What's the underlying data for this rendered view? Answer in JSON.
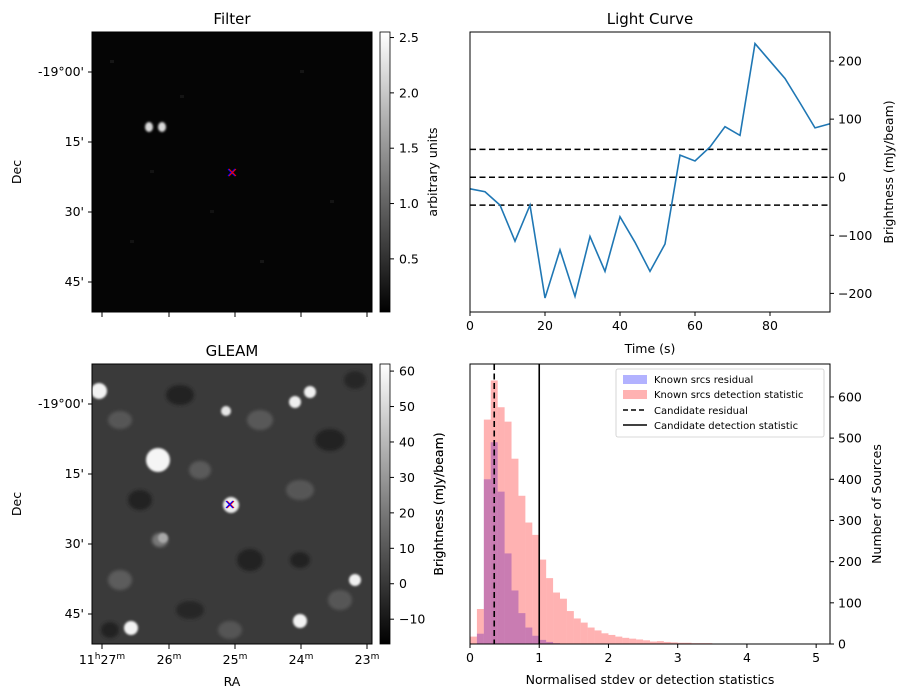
{
  "panels": {
    "filter": {
      "title": "Filter",
      "colorbar_label": "arbitrary units",
      "colorbar_ticks": [
        "0.5",
        "1.0",
        "1.5",
        "2.0",
        "2.5"
      ],
      "colorbar_range": [
        0.02,
        2.55
      ],
      "ylabel": "Dec",
      "yticks": [
        "-19°00'",
        "15'",
        "30'",
        "45'"
      ]
    },
    "gleam": {
      "title": "GLEAM",
      "colorbar_label": "Brightness (mJy/beam)",
      "colorbar_ticks": [
        "−10",
        "0",
        "10",
        "20",
        "30",
        "40",
        "50",
        "60"
      ],
      "colorbar_range": [
        -17,
        62
      ],
      "xlabel": "RA",
      "ylabel": "Dec",
      "yticks": [
        "-19°00'",
        "15'",
        "30'",
        "45'"
      ],
      "xticks": [
        {
          "h": "11",
          "m": "27"
        },
        {
          "h": "",
          "m": "26"
        },
        {
          "h": "",
          "m": "25"
        },
        {
          "h": "",
          "m": "24"
        },
        {
          "h": "",
          "m": "23"
        }
      ]
    }
  },
  "chart_data": [
    {
      "type": "line",
      "title": "Light Curve",
      "xlabel": "Time (s)",
      "ylabel": "Brightness (mJy/beam)",
      "xlim": [
        0,
        96
      ],
      "ylim": [
        -232,
        250
      ],
      "xticks": [
        0,
        20,
        40,
        60,
        80
      ],
      "yticks": [
        -200,
        -100,
        0,
        100,
        200
      ],
      "x": [
        0,
        4,
        8,
        12,
        16,
        20,
        24,
        28,
        32,
        36,
        40,
        44,
        48,
        52,
        56,
        60,
        64,
        68,
        72,
        76,
        80,
        84,
        88,
        92,
        96
      ],
      "y": [
        -20,
        -25,
        -48,
        -110,
        -48,
        -208,
        -125,
        -205,
        -102,
        -162,
        -68,
        -112,
        -162,
        -115,
        38,
        28,
        52,
        87,
        72,
        230,
        200,
        170,
        128,
        85,
        92
      ],
      "color": "#1f77b4",
      "hlines": [
        48,
        0,
        -48
      ],
      "hline_style": "dashed"
    },
    {
      "type": "bar",
      "subtype": "histogram",
      "xlabel": "Normalised stdev or detection statistics",
      "ylabel_left": "Brightness (mJy/beam)",
      "ylabel_right": "Number of Sources",
      "xlim": [
        0,
        5.2
      ],
      "ylim": [
        0,
        680
      ],
      "xticks": [
        0,
        1,
        2,
        3,
        4,
        5
      ],
      "yticks": [
        0,
        100,
        200,
        300,
        400,
        500,
        600
      ],
      "bin_width": 0.1,
      "series": [
        {
          "name": "Known srcs residual",
          "color": "#0000ff",
          "alpha": 0.3,
          "x": [
            0.0,
            0.1,
            0.2,
            0.3,
            0.4,
            0.5,
            0.6,
            0.7,
            0.8,
            0.9,
            1.0,
            1.1,
            1.2
          ],
          "values": [
            0,
            25,
            400,
            490,
            370,
            220,
            130,
            75,
            40,
            20,
            10,
            5,
            2
          ]
        },
        {
          "name": "Known srcs detection statistic",
          "color": "#ff0000",
          "alpha": 0.3,
          "x": [
            0.0,
            0.1,
            0.2,
            0.3,
            0.4,
            0.5,
            0.6,
            0.7,
            0.8,
            0.9,
            1.0,
            1.1,
            1.2,
            1.3,
            1.4,
            1.5,
            1.6,
            1.7,
            1.8,
            1.9,
            2.0,
            2.1,
            2.2,
            2.3,
            2.4,
            2.5,
            2.6,
            2.7,
            2.8,
            2.9,
            3.0,
            3.1,
            3.2,
            3.3,
            3.4,
            3.5,
            3.6,
            3.7,
            3.8,
            3.9,
            4.0,
            4.1,
            4.2,
            4.3,
            4.4,
            4.5,
            4.6,
            4.7,
            4.8,
            4.9,
            5.0
          ],
          "values": [
            18,
            85,
            545,
            640,
            575,
            540,
            450,
            360,
            295,
            265,
            205,
            160,
            125,
            110,
            80,
            62,
            52,
            40,
            33,
            26,
            22,
            18,
            15,
            13,
            11,
            9,
            6,
            7,
            5,
            4,
            3,
            3,
            2,
            2,
            2,
            1,
            1,
            1,
            1,
            1,
            1,
            0,
            1,
            0,
            0,
            0,
            0,
            0,
            0,
            0,
            1
          ]
        }
      ],
      "vlines": [
        {
          "name": "Candidate residual",
          "x": 0.35,
          "style": "dashed"
        },
        {
          "name": "Candidate detection statistic",
          "x": 1.0,
          "style": "solid"
        }
      ],
      "legend_position": "top-right"
    }
  ]
}
